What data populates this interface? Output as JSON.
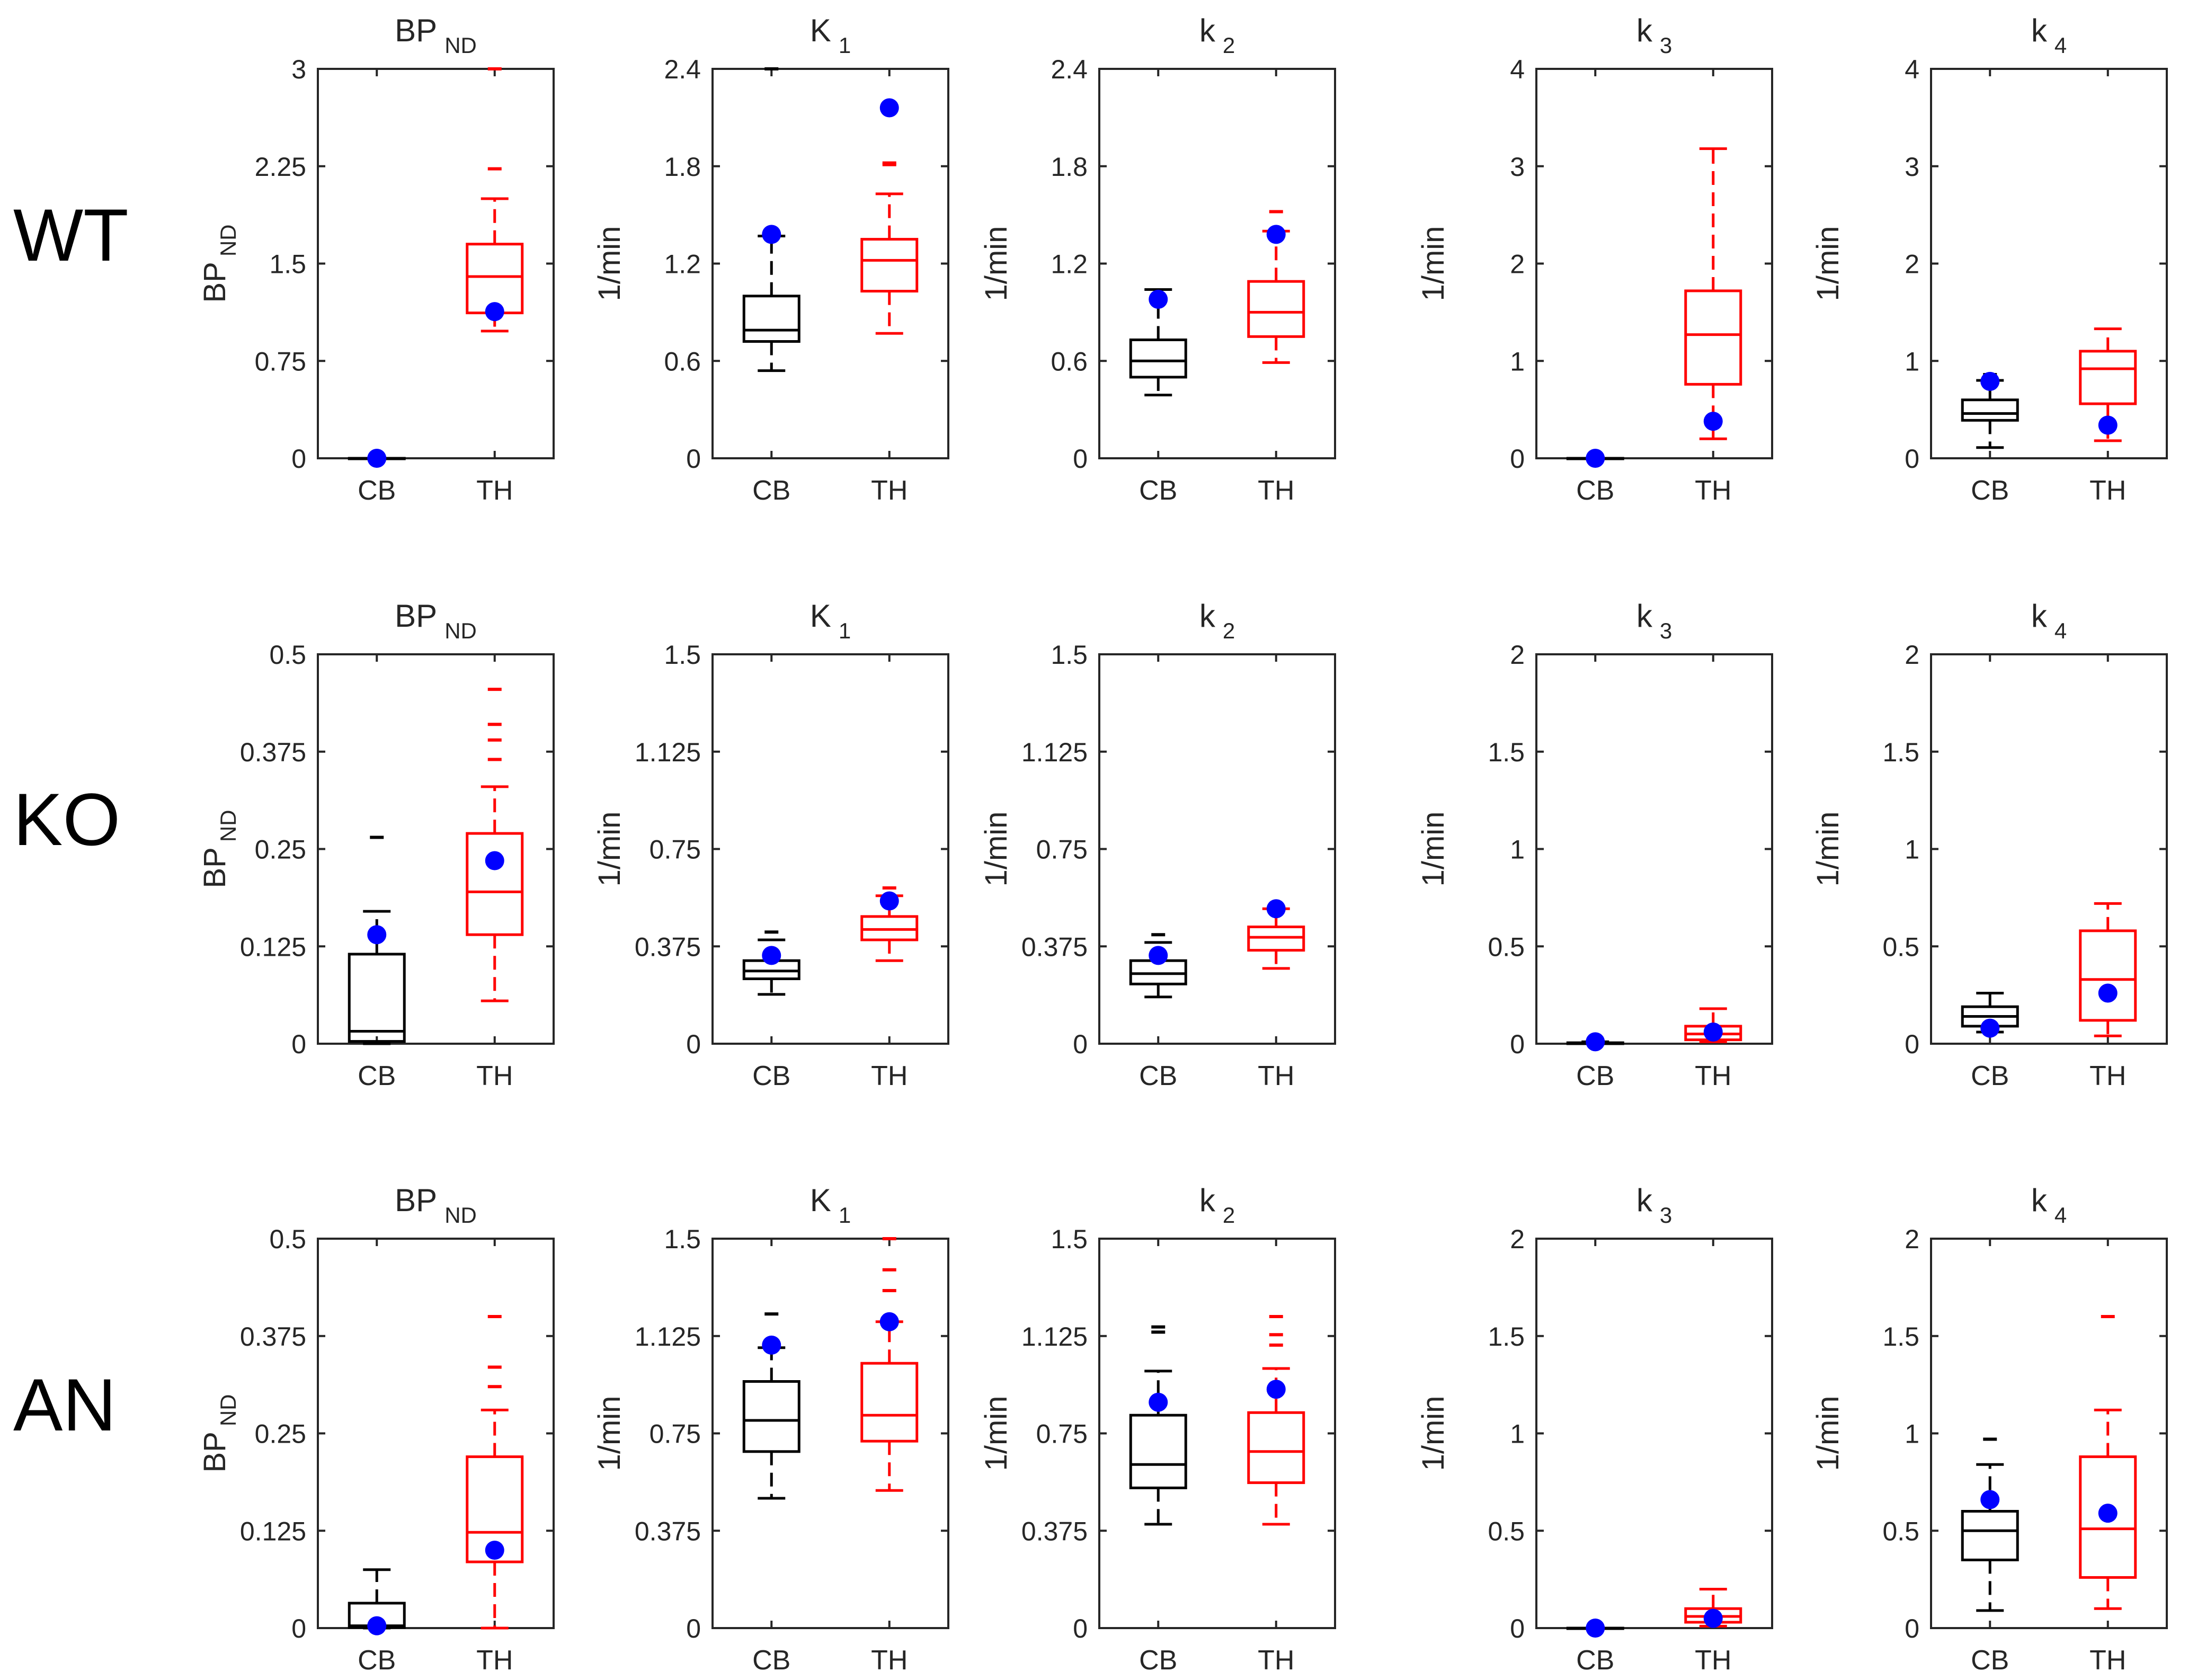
{
  "colors": {
    "cb": "#000000",
    "th": "#ff0000",
    "point": "#0000ff",
    "axis": "#262626"
  },
  "chart_data": [
    {
      "type": "box",
      "group": "WT",
      "title": "BP",
      "title_sub": "ND",
      "ylabel": "BP",
      "ylabel_sub": "ND",
      "ylim": [
        0,
        3
      ],
      "yticks": [
        "0",
        "0.75",
        "1.5",
        "2.25",
        "3"
      ],
      "categories": [
        "CB",
        "TH"
      ],
      "boxes": [
        {
          "cat": "CB",
          "color": "#000000",
          "min": 0,
          "q1": 0,
          "median": 0,
          "q3": 0,
          "max": 0,
          "outliers": [],
          "point": 0
        },
        {
          "cat": "TH",
          "color": "#ff0000",
          "min": 0.98,
          "q1": 1.12,
          "median": 1.4,
          "q3": 1.65,
          "max": 2.0,
          "outliers": [
            2.23,
            3.0
          ],
          "point": 1.13
        }
      ]
    },
    {
      "type": "box",
      "group": "WT",
      "title": "K",
      "title_sub": "1",
      "ylabel": "1/min",
      "ylabel_sub": "",
      "ylim": [
        0,
        2.4
      ],
      "yticks": [
        "0",
        "0.6",
        "1.2",
        "1.8",
        "2.4"
      ],
      "categories": [
        "CB",
        "TH"
      ],
      "boxes": [
        {
          "cat": "CB",
          "color": "#000000",
          "min": 0.54,
          "q1": 0.72,
          "median": 0.79,
          "q3": 1.0,
          "max": 1.37,
          "outliers": [
            1.39,
            2.4
          ],
          "point": 1.38
        },
        {
          "cat": "TH",
          "color": "#ff0000",
          "min": 0.77,
          "q1": 1.03,
          "median": 1.22,
          "q3": 1.35,
          "max": 1.63,
          "outliers": [
            1.81,
            1.82
          ],
          "point": 2.16
        }
      ]
    },
    {
      "type": "box",
      "group": "WT",
      "title": "k",
      "title_sub": "2",
      "ylabel": "1/min",
      "ylabel_sub": "",
      "ylim": [
        0,
        2.4
      ],
      "yticks": [
        "0",
        "0.6",
        "1.2",
        "1.8",
        "2.4"
      ],
      "categories": [
        "CB",
        "TH"
      ],
      "boxes": [
        {
          "cat": "CB",
          "color": "#000000",
          "min": 0.39,
          "q1": 0.5,
          "median": 0.6,
          "q3": 0.73,
          "max": 1.04,
          "outliers": [],
          "point": 0.98
        },
        {
          "cat": "TH",
          "color": "#ff0000",
          "min": 0.59,
          "q1": 0.75,
          "median": 0.9,
          "q3": 1.09,
          "max": 1.4,
          "outliers": [
            1.52
          ],
          "point": 1.38
        }
      ]
    },
    {
      "type": "box",
      "group": "WT",
      "title": "k",
      "title_sub": "3",
      "ylabel": "1/min",
      "ylabel_sub": "",
      "ylim": [
        0,
        4
      ],
      "yticks": [
        "0",
        "1",
        "2",
        "3",
        "4"
      ],
      "categories": [
        "CB",
        "TH"
      ],
      "boxes": [
        {
          "cat": "CB",
          "color": "#000000",
          "min": 0,
          "q1": 0,
          "median": 0,
          "q3": 0,
          "max": 0,
          "outliers": [],
          "point": 0
        },
        {
          "cat": "TH",
          "color": "#ff0000",
          "min": 0.2,
          "q1": 0.76,
          "median": 1.27,
          "q3": 1.72,
          "max": 3.18,
          "outliers": [],
          "point": 0.38
        }
      ]
    },
    {
      "type": "box",
      "group": "WT",
      "title": "k",
      "title_sub": "4",
      "ylabel": "1/min",
      "ylabel_sub": "",
      "ylim": [
        0,
        4
      ],
      "yticks": [
        "0",
        "1",
        "2",
        "3",
        "4"
      ],
      "categories": [
        "CB",
        "TH"
      ],
      "boxes": [
        {
          "cat": "CB",
          "color": "#000000",
          "min": 0.11,
          "q1": 0.39,
          "median": 0.46,
          "q3": 0.6,
          "max": 0.8,
          "outliers": [
            0.86
          ],
          "point": 0.79
        },
        {
          "cat": "TH",
          "color": "#ff0000",
          "min": 0.18,
          "q1": 0.56,
          "median": 0.92,
          "q3": 1.1,
          "max": 1.33,
          "outliers": [],
          "point": 0.34
        }
      ]
    },
    {
      "type": "box",
      "group": "KO",
      "title": "BP",
      "title_sub": "ND",
      "ylabel": "BP",
      "ylabel_sub": "ND",
      "ylim": [
        0,
        0.5
      ],
      "yticks": [
        "0",
        "0.125",
        "0.25",
        "0.375",
        "0.5"
      ],
      "categories": [
        "CB",
        "TH"
      ],
      "boxes": [
        {
          "cat": "CB",
          "color": "#000000",
          "min": 0,
          "q1": 0.003,
          "median": 0.016,
          "q3": 0.115,
          "max": 0.17,
          "outliers": [
            0.265
          ],
          "point": 0.14
        },
        {
          "cat": "TH",
          "color": "#ff0000",
          "min": 0.055,
          "q1": 0.14,
          "median": 0.195,
          "q3": 0.27,
          "max": 0.33,
          "outliers": [
            0.365,
            0.39,
            0.41,
            0.455
          ],
          "point": 0.235
        }
      ]
    },
    {
      "type": "box",
      "group": "KO",
      "title": "K",
      "title_sub": "1",
      "ylabel": "1/min",
      "ylabel_sub": "",
      "ylim": [
        0,
        1.5
      ],
      "yticks": [
        "0",
        "0.375",
        "0.75",
        "1.125",
        "1.5"
      ],
      "categories": [
        "CB",
        "TH"
      ],
      "boxes": [
        {
          "cat": "CB",
          "color": "#000000",
          "min": 0.19,
          "q1": 0.25,
          "median": 0.28,
          "q3": 0.32,
          "max": 0.4,
          "outliers": [
            0.43
          ],
          "point": 0.34
        },
        {
          "cat": "TH",
          "color": "#ff0000",
          "min": 0.32,
          "q1": 0.4,
          "median": 0.44,
          "q3": 0.49,
          "max": 0.57,
          "outliers": [
            0.6
          ],
          "point": 0.55
        }
      ]
    },
    {
      "type": "box",
      "group": "KO",
      "title": "k",
      "title_sub": "2",
      "ylabel": "1/min",
      "ylabel_sub": "",
      "ylim": [
        0,
        1.5
      ],
      "yticks": [
        "0",
        "0.375",
        "0.75",
        "1.125",
        "1.5"
      ],
      "categories": [
        "CB",
        "TH"
      ],
      "boxes": [
        {
          "cat": "CB",
          "color": "#000000",
          "min": 0.18,
          "q1": 0.23,
          "median": 0.27,
          "q3": 0.32,
          "max": 0.39,
          "outliers": [
            0.42
          ],
          "point": 0.34
        },
        {
          "cat": "TH",
          "color": "#ff0000",
          "min": 0.29,
          "q1": 0.36,
          "median": 0.41,
          "q3": 0.45,
          "max": 0.52,
          "outliers": [],
          "point": 0.52
        }
      ]
    },
    {
      "type": "box",
      "group": "KO",
      "title": "k",
      "title_sub": "3",
      "ylabel": "1/min",
      "ylabel_sub": "",
      "ylim": [
        0,
        2
      ],
      "yticks": [
        "0",
        "0.5",
        "1",
        "1.5",
        "2"
      ],
      "categories": [
        "CB",
        "TH"
      ],
      "boxes": [
        {
          "cat": "CB",
          "color": "#000000",
          "min": 0,
          "q1": 0,
          "median": 0,
          "q3": 0.005,
          "max": 0.01,
          "outliers": [],
          "point": 0.01
        },
        {
          "cat": "TH",
          "color": "#ff0000",
          "min": 0.01,
          "q1": 0.02,
          "median": 0.05,
          "q3": 0.09,
          "max": 0.18,
          "outliers": [],
          "point": 0.06
        }
      ]
    },
    {
      "type": "box",
      "group": "KO",
      "title": "k",
      "title_sub": "4",
      "ylabel": "1/min",
      "ylabel_sub": "",
      "ylim": [
        0,
        2
      ],
      "yticks": [
        "0",
        "0.5",
        "1",
        "1.5",
        "2"
      ],
      "categories": [
        "CB",
        "TH"
      ],
      "boxes": [
        {
          "cat": "CB",
          "color": "#000000",
          "min": 0.06,
          "q1": 0.09,
          "median": 0.14,
          "q3": 0.19,
          "max": 0.26,
          "outliers": [],
          "point": 0.08
        },
        {
          "cat": "TH",
          "color": "#ff0000",
          "min": 0.04,
          "q1": 0.12,
          "median": 0.33,
          "q3": 0.58,
          "max": 0.72,
          "outliers": [],
          "point": 0.26
        }
      ]
    },
    {
      "type": "box",
      "group": "AN",
      "title": "BP",
      "title_sub": "ND",
      "ylabel": "BP",
      "ylabel_sub": "ND",
      "ylim": [
        0,
        0.5
      ],
      "yticks": [
        "0",
        "0.125",
        "0.25",
        "0.375",
        "0.5"
      ],
      "categories": [
        "CB",
        "TH"
      ],
      "boxes": [
        {
          "cat": "CB",
          "color": "#000000",
          "min": 0,
          "q1": 0.001,
          "median": 0.003,
          "q3": 0.032,
          "max": 0.075,
          "outliers": [],
          "point": 0.003
        },
        {
          "cat": "TH",
          "color": "#ff0000",
          "min": 0,
          "q1": 0.085,
          "median": 0.123,
          "q3": 0.22,
          "max": 0.28,
          "outliers": [
            0.31,
            0.335,
            0.4
          ],
          "point": 0.1
        }
      ]
    },
    {
      "type": "box",
      "group": "AN",
      "title": "K",
      "title_sub": "1",
      "ylabel": "1/min",
      "ylabel_sub": "",
      "ylim": [
        0,
        1.5
      ],
      "yticks": [
        "0",
        "0.375",
        "0.75",
        "1.125",
        "1.5"
      ],
      "categories": [
        "CB",
        "TH"
      ],
      "boxes": [
        {
          "cat": "CB",
          "color": "#000000",
          "min": 0.5,
          "q1": 0.68,
          "median": 0.8,
          "q3": 0.95,
          "max": 1.08,
          "outliers": [
            1.21
          ],
          "point": 1.09
        },
        {
          "cat": "TH",
          "color": "#ff0000",
          "min": 0.53,
          "q1": 0.72,
          "median": 0.82,
          "q3": 1.02,
          "max": 1.18,
          "outliers": [
            1.3,
            1.38,
            1.5
          ],
          "point": 1.18
        }
      ]
    },
    {
      "type": "box",
      "group": "AN",
      "title": "k",
      "title_sub": "2",
      "ylabel": "1/min",
      "ylabel_sub": "",
      "ylim": [
        0,
        1.5
      ],
      "yticks": [
        "0",
        "0.375",
        "0.75",
        "1.125",
        "1.5"
      ],
      "categories": [
        "CB",
        "TH"
      ],
      "boxes": [
        {
          "cat": "CB",
          "color": "#000000",
          "min": 0.4,
          "q1": 0.54,
          "median": 0.63,
          "q3": 0.82,
          "max": 0.99,
          "outliers": [
            1.14,
            1.16
          ],
          "point": 0.87
        },
        {
          "cat": "TH",
          "color": "#ff0000",
          "min": 0.4,
          "q1": 0.56,
          "median": 0.68,
          "q3": 0.83,
          "max": 1.0,
          "outliers": [
            1.09,
            1.13,
            1.2
          ],
          "point": 0.92
        }
      ]
    },
    {
      "type": "box",
      "group": "AN",
      "title": "k",
      "title_sub": "3",
      "ylabel": "1/min",
      "ylabel_sub": "",
      "ylim": [
        0,
        2
      ],
      "yticks": [
        "0",
        "0.5",
        "1",
        "1.5",
        "2"
      ],
      "categories": [
        "CB",
        "TH"
      ],
      "boxes": [
        {
          "cat": "CB",
          "color": "#000000",
          "min": 0,
          "q1": 0,
          "median": 0,
          "q3": 0,
          "max": 0,
          "outliers": [],
          "point": 0
        },
        {
          "cat": "TH",
          "color": "#ff0000",
          "min": 0.01,
          "q1": 0.03,
          "median": 0.06,
          "q3": 0.1,
          "max": 0.2,
          "outliers": [],
          "point": 0.05
        }
      ]
    },
    {
      "type": "box",
      "group": "AN",
      "title": "k",
      "title_sub": "4",
      "ylabel": "1/min",
      "ylabel_sub": "",
      "ylim": [
        0,
        2
      ],
      "yticks": [
        "0",
        "0.5",
        "1",
        "1.5",
        "2"
      ],
      "categories": [
        "CB",
        "TH"
      ],
      "boxes": [
        {
          "cat": "CB",
          "color": "#000000",
          "min": 0.09,
          "q1": 0.35,
          "median": 0.5,
          "q3": 0.6,
          "max": 0.84,
          "outliers": [
            0.97
          ],
          "point": 0.66
        },
        {
          "cat": "TH",
          "color": "#ff0000",
          "min": 0.1,
          "q1": 0.26,
          "median": 0.51,
          "q3": 0.88,
          "max": 1.12,
          "outliers": [
            1.6
          ],
          "point": 0.59
        }
      ]
    }
  ],
  "row_labels": [
    "WT",
    "KO",
    "AN"
  ]
}
